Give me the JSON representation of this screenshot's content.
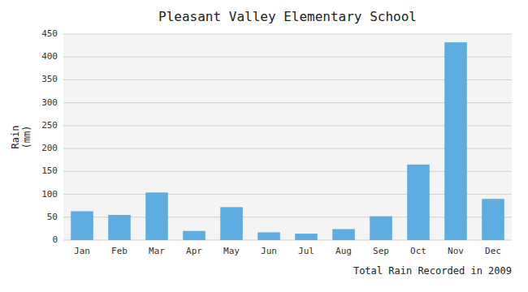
{
  "chart_data": {
    "type": "bar",
    "title": "Pleasant Valley Elementary School",
    "xlabel": "Total Rain Recorded in 2009",
    "ylabel": "Rain\n(mm)",
    "categories": [
      "Jan",
      "Feb",
      "Mar",
      "Apr",
      "May",
      "Jun",
      "Jul",
      "Aug",
      "Sep",
      "Oct",
      "Nov",
      "Dec"
    ],
    "values": [
      63,
      55,
      104,
      20,
      72,
      17,
      14,
      24,
      52,
      165,
      432,
      90
    ],
    "color": "#5DADE2",
    "ylim": [
      0,
      450
    ],
    "yticks": [
      0,
      50,
      100,
      150,
      200,
      250,
      300,
      350,
      400,
      450
    ],
    "grid": true
  }
}
